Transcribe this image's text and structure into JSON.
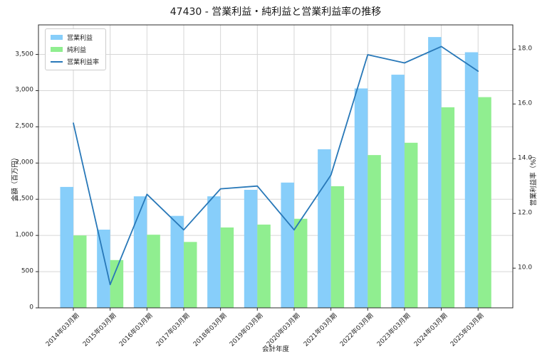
{
  "title": "47430 - 営業利益・純利益と営業利益率の推移",
  "chart_data": {
    "type": "bar",
    "categories": [
      "2014年03月期",
      "2015年03月期",
      "2016年03月期",
      "2017年03月期",
      "2018年03月期",
      "2019年03月期",
      "2020年03月期",
      "2021年03月期",
      "2022年03月期",
      "2023年03月期",
      "2024年03月期",
      "2025年03月期"
    ],
    "series": [
      {
        "key": "operating-profit",
        "name": "営業利益",
        "type": "bar",
        "axis": "left",
        "color": "#87CEFA",
        "values": [
          1670,
          1080,
          1540,
          1270,
          1540,
          1630,
          1730,
          2190,
          3030,
          3220,
          3740,
          3530
        ]
      },
      {
        "key": "net-profit",
        "name": "純利益",
        "type": "bar",
        "axis": "left",
        "color": "#90EE90",
        "values": [
          1000,
          660,
          1010,
          910,
          1110,
          1150,
          1230,
          1680,
          2110,
          2280,
          2770,
          2910
        ]
      },
      {
        "key": "operating-margin",
        "name": "営業利益率",
        "type": "line",
        "axis": "right",
        "color": "#2878B8",
        "values": [
          15.3,
          9.4,
          12.7,
          11.4,
          12.9,
          13.0,
          11.4,
          13.4,
          17.8,
          17.5,
          18.1,
          17.2
        ]
      }
    ],
    "xlabel": "会計年度",
    "ylabel_left": "金額（百万円）",
    "ylabel_right": "営業利益率（%）",
    "ylim_left": [
      0,
      3908
    ],
    "ylim_right": [
      8.55,
      18.89
    ],
    "ytick_values_left": [
      0,
      500,
      1000,
      1500,
      2000,
      2500,
      3000,
      3500
    ],
    "ytick_labels_left": [
      "0",
      "500",
      "1,000",
      "1,500",
      "2,000",
      "2,500",
      "3,000",
      "3,500"
    ],
    "ytick_values_right": [
      10,
      12,
      14,
      16,
      18
    ],
    "ytick_labels_right": [
      "10.0",
      "12.0",
      "14.0",
      "16.0",
      "18.0"
    ],
    "grid": true,
    "legend_position": "upper left",
    "colors": {
      "grid": "#d6d6d6",
      "spine": "#2b2b2b",
      "text": "#262626"
    }
  }
}
